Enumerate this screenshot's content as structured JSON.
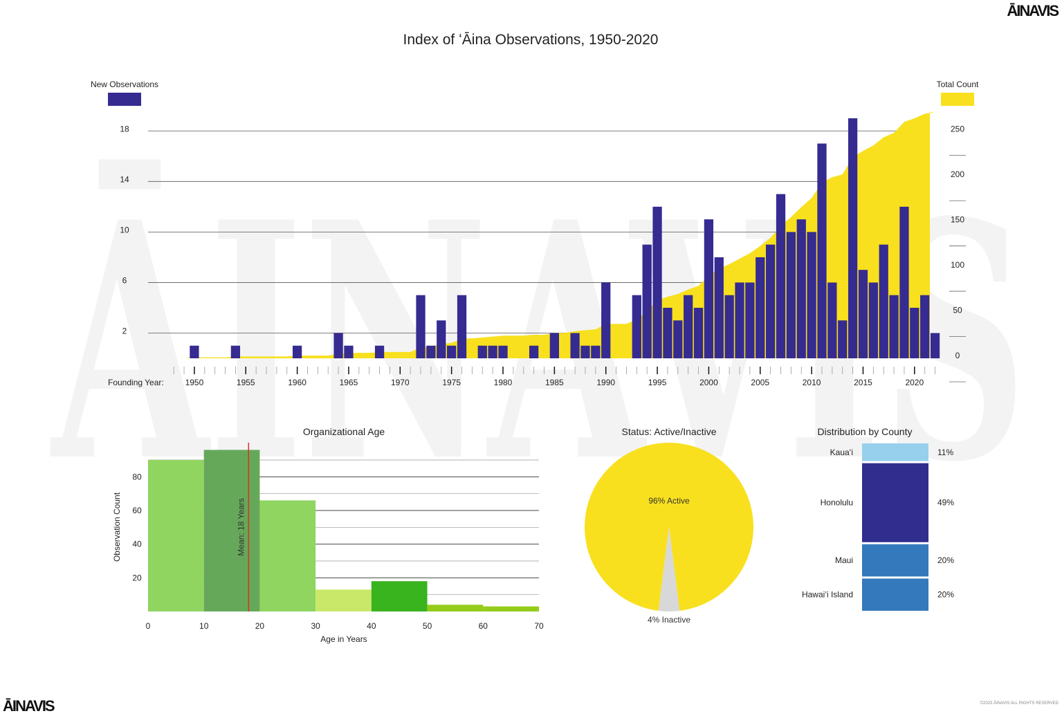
{
  "title": "Index of ʻĀina Observations, 1950-2020",
  "brand": {
    "logo": "ĀINAVIS",
    "watermark": "ĀINAVIS",
    "copyright": "©2023 ĀINAVIS ALL RIGHTS RESERVED"
  },
  "colors": {
    "purple": "#352b91",
    "yellow": "#f8e01e",
    "grid": "#555555",
    "mean_line": "#e03020",
    "hist": [
      "#8fd560",
      "#66a85a",
      "#8fd560",
      "#c9e86a",
      "#39b31e",
      "#94cc19",
      "#94cc19"
    ],
    "county": [
      "#97d0ec",
      "#312d8f",
      "#3479bb",
      "#3479bb"
    ],
    "inactive": "#d8d8d8"
  },
  "chart_data": [
    {
      "type": "bar",
      "title": "",
      "legend_left": "New Observations",
      "legend_right": "Total Count",
      "x_label": "Founding Year:",
      "x_ticks": [
        "1950",
        "1955",
        "1960",
        "1965",
        "1970",
        "1975",
        "1980",
        "1985",
        "1990",
        "1995",
        "2000",
        "2005",
        "2010",
        "2015",
        "2020"
      ],
      "y_left_ticks": [
        2,
        6,
        10,
        14,
        18
      ],
      "y_left_lim": [
        0,
        19
      ],
      "y_right_ticks": [
        0,
        50,
        100,
        150,
        200,
        250
      ],
      "y_right_lim": [
        0,
        265
      ],
      "years": [
        1948,
        1949,
        1950,
        1951,
        1952,
        1953,
        1954,
        1955,
        1956,
        1957,
        1958,
        1959,
        1960,
        1961,
        1962,
        1963,
        1964,
        1965,
        1966,
        1967,
        1968,
        1969,
        1970,
        1971,
        1972,
        1973,
        1974,
        1975,
        1976,
        1977,
        1978,
        1979,
        1980,
        1981,
        1982,
        1983,
        1984,
        1985,
        1986,
        1987,
        1988,
        1989,
        1990,
        1991,
        1992,
        1993,
        1994,
        1995,
        1996,
        1997,
        1998,
        1999,
        2000,
        2001,
        2002,
        2003,
        2004,
        2005,
        2006,
        2007,
        2008,
        2009,
        2010,
        2011,
        2012,
        2013,
        2014,
        2015,
        2016,
        2017,
        2018,
        2019,
        2020,
        2021,
        2022
      ],
      "new_observations": [
        0,
        0,
        1,
        0,
        0,
        0,
        1,
        0,
        0,
        0,
        0,
        0,
        1,
        0,
        0,
        0,
        2,
        1,
        0,
        0,
        1,
        0,
        0,
        0,
        5,
        1,
        3,
        1,
        5,
        0,
        1,
        1,
        1,
        0,
        0,
        1,
        0,
        2,
        0,
        2,
        1,
        1,
        6,
        0,
        0,
        5,
        9,
        12,
        4,
        3,
        5,
        4,
        11,
        8,
        5,
        6,
        6,
        8,
        9,
        13,
        10,
        11,
        10,
        17,
        6,
        3,
        19,
        7,
        6,
        9,
        5,
        12,
        4,
        5,
        2
      ],
      "total_count": [
        0,
        0,
        1,
        1,
        1,
        1,
        2,
        2,
        2,
        2,
        2,
        2,
        3,
        3,
        3,
        3,
        5,
        6,
        6,
        6,
        7,
        7,
        7,
        7,
        12,
        13,
        16,
        17,
        22,
        22,
        23,
        24,
        25,
        25,
        25,
        26,
        26,
        28,
        28,
        30,
        31,
        32,
        38,
        38,
        38,
        43,
        52,
        64,
        68,
        71,
        76,
        80,
        91,
        99,
        104,
        110,
        116,
        124,
        133,
        146,
        156,
        167,
        177,
        194,
        200,
        203,
        222,
        229,
        235,
        244,
        249,
        261,
        265,
        270,
        272
      ]
    },
    {
      "type": "bar",
      "title": "Organizational Age",
      "xlabel": "Age in Years",
      "ylabel": "Observation Count",
      "bins": [
        [
          0,
          10
        ],
        [
          10,
          20
        ],
        [
          20,
          30
        ],
        [
          30,
          40
        ],
        [
          40,
          50
        ],
        [
          50,
          60
        ],
        [
          60,
          70
        ]
      ],
      "values": [
        90,
        96,
        66,
        13,
        18,
        4,
        3
      ],
      "x_ticks": [
        0,
        10,
        20,
        30,
        40,
        50,
        60,
        70
      ],
      "y_ticks": [
        20,
        40,
        60,
        80
      ],
      "ylim": [
        0,
        90
      ],
      "mean": 18,
      "mean_label": "Mean: 18 Years"
    },
    {
      "type": "pie",
      "title": "Status: Active/Inactive",
      "labels": [
        "96% Active",
        "4% Inactive"
      ],
      "values": [
        96,
        4
      ]
    },
    {
      "type": "bar",
      "title": "Distribution by County",
      "categories": [
        "Kauaʻi",
        "Honolulu",
        "Maui",
        "Hawaiʻi Island"
      ],
      "values": [
        11,
        49,
        20,
        20
      ],
      "value_labels": [
        "11%",
        "49%",
        "20%",
        "20%"
      ]
    }
  ]
}
